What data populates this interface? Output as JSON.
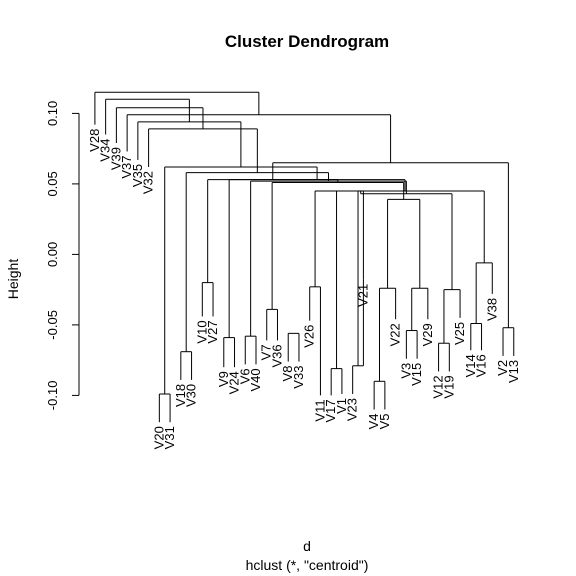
{
  "chart_data": {
    "type": "dendrogram",
    "title": "Cluster Dendrogram",
    "xlabel": "d",
    "sub": "hclust (*, \"centroid\")",
    "ylabel": "Height",
    "ylim": [
      -0.1,
      0.1
    ],
    "yticks": [
      -0.1,
      -0.05,
      0.0,
      0.05,
      0.1
    ],
    "ytick_labels": [
      "-0.10",
      "-0.05",
      "0.00",
      "0.05",
      "0.10"
    ],
    "leaves": [
      {
        "label": "V28",
        "y": 0.092
      },
      {
        "label": "V34",
        "y": 0.085
      },
      {
        "label": "V39",
        "y": 0.079
      },
      {
        "label": "V37",
        "y": 0.073
      },
      {
        "label": "V35",
        "y": 0.067
      },
      {
        "label": "V32",
        "y": 0.062
      },
      {
        "label": "V20",
        "y": -0.119
      },
      {
        "label": "V31",
        "y": -0.119
      },
      {
        "label": "V18",
        "y": -0.089
      },
      {
        "label": "V30",
        "y": -0.089
      },
      {
        "label": "V10",
        "y": -0.044
      },
      {
        "label": "V27",
        "y": -0.044
      },
      {
        "label": "V9",
        "y": -0.08
      },
      {
        "label": "V24",
        "y": -0.08
      },
      {
        "label": "V6",
        "y": -0.078
      },
      {
        "label": "V40",
        "y": -0.078
      },
      {
        "label": "V7",
        "y": -0.061
      },
      {
        "label": "V36",
        "y": -0.061
      },
      {
        "label": "V8",
        "y": -0.076
      },
      {
        "label": "V33",
        "y": -0.076
      },
      {
        "label": "V26",
        "y": -0.047
      },
      {
        "label": "V11",
        "y": -0.1
      },
      {
        "label": "V17",
        "y": -0.1
      },
      {
        "label": "V1",
        "y": -0.099
      },
      {
        "label": "V23",
        "y": -0.099
      },
      {
        "label": "V21",
        "y": -0.018
      },
      {
        "label": "V4",
        "y": -0.11
      },
      {
        "label": "V5",
        "y": -0.11
      },
      {
        "label": "V22",
        "y": -0.046
      },
      {
        "label": "V3",
        "y": -0.074
      },
      {
        "label": "V15",
        "y": -0.074
      },
      {
        "label": "V29",
        "y": -0.046
      },
      {
        "label": "V12",
        "y": -0.083
      },
      {
        "label": "V19",
        "y": -0.083
      },
      {
        "label": "V25",
        "y": -0.045
      },
      {
        "label": "V14",
        "y": -0.068
      },
      {
        "label": "V16",
        "y": -0.068
      },
      {
        "label": "V38",
        "y": -0.028
      },
      {
        "label": "V2",
        "y": -0.072
      },
      {
        "label": "V13",
        "y": -0.072
      }
    ],
    "merges": [
      {
        "left": 20,
        "right": 21,
        "height": -0.023
      },
      {
        "left": 22,
        "right": 23,
        "height": -0.081
      },
      {
        "left": 24,
        "right": 25,
        "height": -0.079
      },
      {
        "left": 26,
        "right": 27,
        "height": -0.09
      },
      {
        "left": 29,
        "right": 30,
        "height": -0.054
      },
      {
        "left": 32,
        "right": 33,
        "height": -0.063
      },
      {
        "left": 35,
        "right": 36,
        "height": -0.049
      },
      {
        "left": 38,
        "right": 39,
        "height": -0.052
      },
      {
        "left": 6,
        "right": 7,
        "height": -0.099
      },
      {
        "left": 8,
        "right": 9,
        "height": -0.069
      },
      {
        "left": 10,
        "right": 11,
        "height": -0.02
      },
      {
        "left": 12,
        "right": 13,
        "height": -0.059
      },
      {
        "left": 14,
        "right": 15,
        "height": -0.058
      },
      {
        "left": 16,
        "right": 17,
        "height": -0.039
      },
      {
        "left": 18,
        "right": 19,
        "height": -0.056
      },
      {
        "left": "m1",
        "right": "m2",
        "height": 0.045
      },
      {
        "left": "m3",
        "right": 25,
        "height": 0.045
      },
      {
        "left": 28,
        "right": "m4",
        "height": -0.024
      },
      {
        "left": "m5",
        "right": 31,
        "height": -0.024
      },
      {
        "left": "m6",
        "right": 34,
        "height": -0.025
      },
      {
        "left": 37,
        "right": "m7",
        "height": -0.006
      },
      {
        "left": "m18",
        "right": "m19",
        "height": 0.039
      },
      {
        "left": "m17",
        "right": "m20",
        "height": 0.043
      },
      {
        "left": "m16",
        "right": "m21",
        "height": 0.045
      },
      {
        "left": "m14",
        "right": "m22",
        "height": 0.051
      },
      {
        "left": "m13",
        "right": "m23",
        "height": 0.052
      },
      {
        "left": "m12",
        "right": "m24",
        "height": 0.053
      },
      {
        "left": "m11",
        "right": "m25",
        "height": 0.053
      },
      {
        "left": "m10",
        "right": "m26",
        "height": 0.058
      },
      {
        "left": "m9",
        "right": "m27",
        "height": 0.062
      },
      {
        "left": "m8",
        "right": "m28",
        "height": 0.065
      },
      {
        "left": 5,
        "right": "m29",
        "height": 0.089
      },
      {
        "left": 4,
        "right": "m30",
        "height": 0.094
      },
      {
        "left": 3,
        "right": "m31",
        "height": 0.099
      },
      {
        "left": 2,
        "right": "m32",
        "height": 0.104
      },
      {
        "left": 1,
        "right": "m33",
        "height": 0.11
      },
      {
        "left": 0,
        "right": "m34",
        "height": 0.115
      }
    ]
  }
}
